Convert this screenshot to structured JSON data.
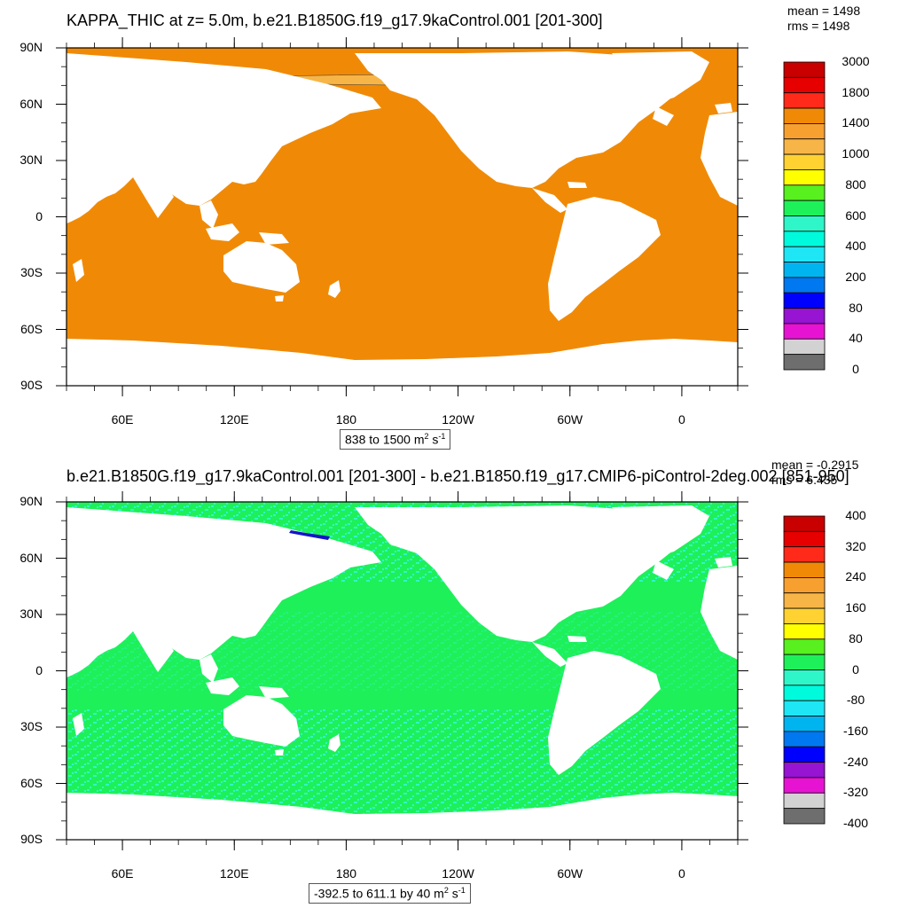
{
  "colors": {
    "land": "#ffffff",
    "ocean_top": "#f08a06",
    "ocean_bottom": "#1ef05a",
    "noise_bottom": "#2ef6c8",
    "sea_ice_band": "#f7b548",
    "neg_streak": "#1414c8"
  },
  "top": {
    "title": "KAPPA_THIC at z=   5.0m, b.e21.B1850G.f19_g17.9kaControl.001 [201-300]",
    "mean": "mean = 1498",
    "rms": "rms = 1498",
    "range": {
      "text": "838 to 1500 m",
      "sup1": "2",
      "mid": " s",
      "sup2": "-1"
    },
    "colorbar": {
      "colors": [
        "#c80000",
        "#e60000",
        "#ff2a1a",
        "#f08a06",
        "#f7a030",
        "#f7b548",
        "#ffd232",
        "#ffff00",
        "#58f01e",
        "#1ef05a",
        "#2ef6c8",
        "#00fadc",
        "#1ee6f5",
        "#00b4f0",
        "#0078f0",
        "#0000ff",
        "#9614d2",
        "#e614d2",
        "#d2d2d2",
        "#6e6e6e"
      ],
      "labels": [
        "3000",
        "1800",
        "1400",
        "1000",
        "800",
        "600",
        "400",
        "200",
        "80",
        "40",
        "0"
      ]
    }
  },
  "bottom": {
    "title": "b.e21.B1850G.f19_g17.9kaControl.001 [201-300] - b.e21.B1850.f19_g17.CMIP6-piControl-2deg.002 [851-950]",
    "mean": "mean = -0.2915",
    "rms": "rms = 6.435",
    "range": {
      "text": "-392.5 to 611.1 by 40 m",
      "sup1": "2",
      "mid": " s",
      "sup2": "-1"
    },
    "colorbar": {
      "colors": [
        "#c80000",
        "#e60000",
        "#ff2a1a",
        "#f08a06",
        "#f7a030",
        "#f7b548",
        "#ffd232",
        "#ffff00",
        "#58f01e",
        "#1ef05a",
        "#2ef6c8",
        "#00fadc",
        "#1ee6f5",
        "#00b4f0",
        "#0078f0",
        "#0000ff",
        "#9614d2",
        "#e614d2",
        "#d2d2d2",
        "#6e6e6e"
      ],
      "labels": [
        "400",
        "320",
        "240",
        "160",
        "80",
        "0",
        "-80",
        "-160",
        "-240",
        "-320",
        "-400"
      ]
    }
  },
  "axes": {
    "lat_labels": [
      "90N",
      "60N",
      "30N",
      "0",
      "30S",
      "60S",
      "90S"
    ],
    "lon_labels": [
      "60E",
      "120E",
      "180",
      "120W",
      "60W",
      "0"
    ]
  }
}
